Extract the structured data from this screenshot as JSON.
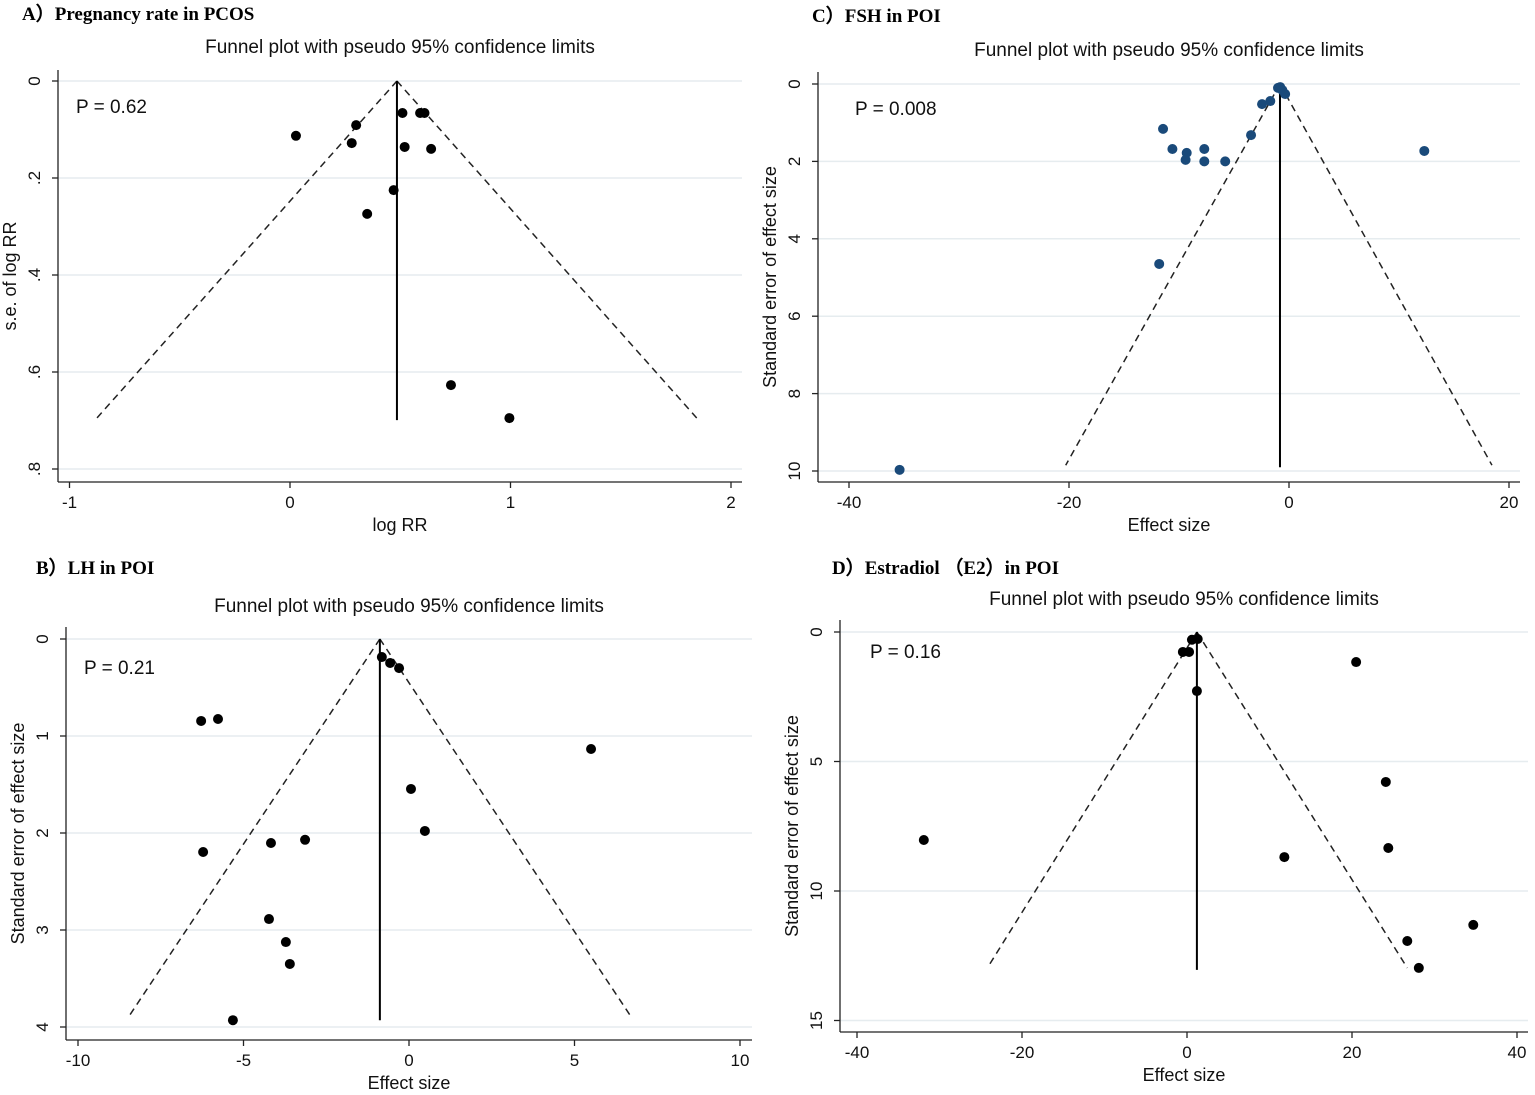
{
  "chart_data": [
    {
      "id": "A",
      "type": "scatter",
      "panel_label": "A）Pregnancy rate in PCOS",
      "title": "Funnel plot with pseudo 95% confidence limits",
      "xlabel": "log RR",
      "ylabel": "s.e. of log RR",
      "annotation": "P = 0.62",
      "xticks": [
        -1,
        0,
        1,
        2
      ],
      "xtick_labels": [
        "-1",
        "0",
        "1",
        "2"
      ],
      "yticks": [
        0,
        0.2,
        0.4,
        0.6,
        0.8
      ],
      "ytick_labels": [
        "0",
        ".2",
        ".4",
        ".6",
        ".8"
      ],
      "y_reversed": true,
      "grid": true,
      "point_color": "#000000",
      "funnel": {
        "center": 0.485,
        "se_max": 0.695,
        "left": -0.876,
        "right": 1.845
      },
      "points": [
        [
          0.027,
          0.113
        ],
        [
          0.3,
          0.091
        ],
        [
          0.28,
          0.128
        ],
        [
          0.51,
          0.066
        ],
        [
          0.59,
          0.066
        ],
        [
          0.61,
          0.066
        ],
        [
          0.52,
          0.136
        ],
        [
          0.64,
          0.14
        ],
        [
          0.47,
          0.225
        ],
        [
          0.35,
          0.274
        ],
        [
          0.73,
          0.627
        ],
        [
          0.995,
          0.695
        ]
      ]
    },
    {
      "id": "B",
      "type": "scatter",
      "panel_label": "B）LH in POI",
      "title": "Funnel plot with pseudo 95% confidence limits",
      "xlabel": "Effect size",
      "ylabel": "Standard error of effect size",
      "annotation": "P = 0.21",
      "xticks": [
        -10,
        -5,
        0,
        5,
        10
      ],
      "xtick_labels": [
        "-10",
        "-5",
        "0",
        "5",
        "10"
      ],
      "yticks": [
        0,
        1,
        2,
        3,
        4
      ],
      "ytick_labels": [
        "0",
        "1",
        "2",
        "3",
        "4"
      ],
      "y_reversed": true,
      "grid": true,
      "point_color": "#000000",
      "funnel": {
        "center": -0.88,
        "se_max": 3.91,
        "left": -8.5,
        "right": 6.74
      },
      "points": [
        [
          -6.28,
          0.845
        ],
        [
          -5.77,
          0.825
        ],
        [
          -0.82,
          0.186
        ],
        [
          -0.57,
          0.247
        ],
        [
          -0.3,
          0.3
        ],
        [
          5.5,
          1.134
        ],
        [
          0.06,
          1.546
        ],
        [
          0.48,
          1.979
        ],
        [
          -6.22,
          2.196
        ],
        [
          -4.17,
          2.103
        ],
        [
          -3.14,
          2.07
        ],
        [
          -4.23,
          2.887
        ],
        [
          -3.72,
          3.124
        ],
        [
          -3.6,
          3.35
        ],
        [
          -5.32,
          3.93
        ]
      ]
    },
    {
      "id": "C",
      "type": "scatter",
      "panel_label": "C）FSH in POI",
      "title": "Funnel plot with pseudo 95% confidence limits",
      "xlabel": "Effect size",
      "ylabel": "Standard error of effect size",
      "annotation": "P = 0.008",
      "xticks": [
        -40,
        -20,
        0,
        20
      ],
      "xtick_labels": [
        "-40",
        "-20",
        "0",
        "20"
      ],
      "yticks": [
        0,
        2,
        4,
        6,
        8,
        10
      ],
      "ytick_labels": [
        "0",
        "2",
        "4",
        "6",
        "8",
        "10"
      ],
      "y_reversed": true,
      "grid": true,
      "point_color": "#1a4a7a",
      "funnel": {
        "center": -0.82,
        "se_max": 9.85,
        "left": -20.3,
        "right": 18.45
      },
      "points": [
        [
          -11.45,
          1.16
        ],
        [
          -10.6,
          1.68
        ],
        [
          -9.3,
          1.78
        ],
        [
          -9.4,
          1.96
        ],
        [
          -7.7,
          1.68
        ],
        [
          -7.7,
          2.0
        ],
        [
          -5.8,
          2.0
        ],
        [
          -3.45,
          1.32
        ],
        [
          -2.45,
          0.52
        ],
        [
          -1.7,
          0.44
        ],
        [
          -1.0,
          0.1
        ],
        [
          -0.6,
          0.16
        ],
        [
          -0.35,
          0.26
        ],
        [
          -0.8,
          0.08
        ],
        [
          12.3,
          1.73
        ],
        [
          -11.8,
          4.65
        ],
        [
          -35.4,
          9.97
        ]
      ]
    },
    {
      "id": "D",
      "type": "scatter",
      "panel_label": "D）Estradiol （E2）in POI",
      "title": "Funnel plot with pseudo 95% confidence limits",
      "xlabel": "Effect size",
      "ylabel": "Standard error of effect size",
      "annotation": "P = 0.16",
      "xticks": [
        -40,
        -20,
        0,
        20,
        40
      ],
      "xtick_labels": [
        "-40",
        "-20",
        "0",
        "20",
        "40"
      ],
      "yticks": [
        0,
        5,
        10,
        15
      ],
      "ytick_labels": [
        "0",
        "5",
        "10",
        "15"
      ],
      "y_reversed": true,
      "grid": true,
      "point_color": "#000000",
      "funnel": {
        "center": 1.2,
        "se_max": 12.97,
        "left": -24.2,
        "right": 26.7
      },
      "points": [
        [
          -0.5,
          0.77
        ],
        [
          0.25,
          0.77
        ],
        [
          0.6,
          0.3
        ],
        [
          1.3,
          0.27
        ],
        [
          1.2,
          2.28
        ],
        [
          20.5,
          1.16
        ],
        [
          24.1,
          5.79
        ],
        [
          24.4,
          8.34
        ],
        [
          11.8,
          8.69
        ],
        [
          -31.9,
          8.03
        ],
        [
          26.7,
          11.93
        ],
        [
          34.7,
          11.31
        ],
        [
          28.1,
          12.97
        ]
      ]
    }
  ]
}
